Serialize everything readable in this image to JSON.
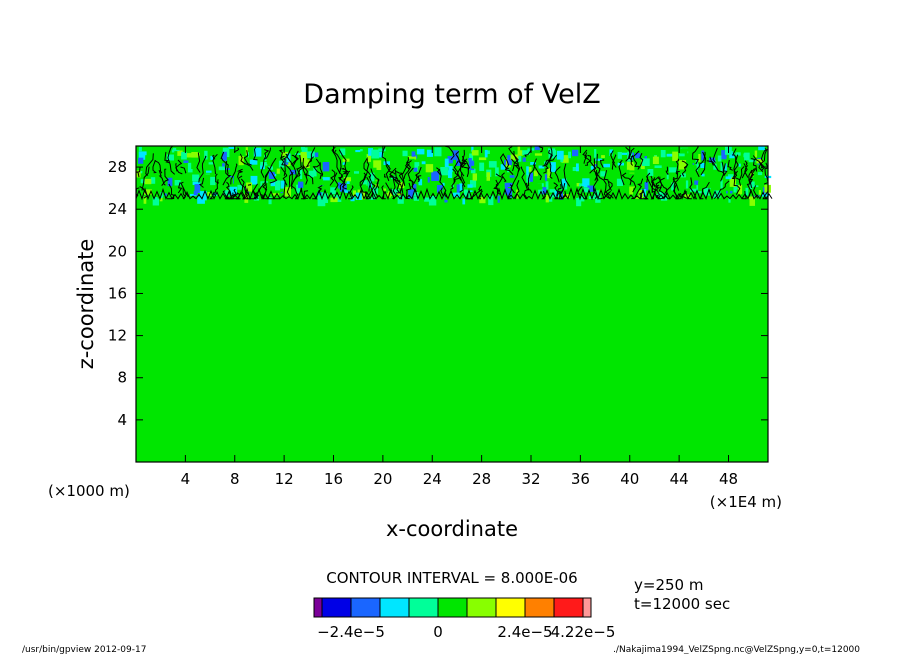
{
  "chart_data": {
    "type": "heatmap",
    "title": "Damping term of VelZ",
    "xlabel": "x-coordinate",
    "ylabel": "z-coordinate",
    "x_unit_left": "(×1000 m)",
    "x_unit_right": "(×1E4 m)",
    "xlim": [
      0,
      51.2
    ],
    "ylim": [
      0,
      30
    ],
    "xticks": [
      "4",
      "8",
      "12",
      "16",
      "20",
      "24",
      "28",
      "32",
      "36",
      "40",
      "44",
      "48"
    ],
    "xtick_values": [
      4,
      8,
      12,
      16,
      20,
      24,
      28,
      32,
      36,
      40,
      44,
      48
    ],
    "yticks": [
      "4",
      "8",
      "12",
      "16",
      "20",
      "24",
      "28"
    ],
    "ytick_values": [
      4,
      8,
      12,
      16,
      20,
      24,
      28
    ],
    "damping_layer_bottom": 25,
    "background_value": 0,
    "contour_interval_text": "CONTOUR INTERVAL = 8.000E-06",
    "colorbar": {
      "levels": [
        -3.2e-05,
        -2.4e-05,
        -1.6e-05,
        -8e-06,
        0,
        8e-06,
        1.6e-05,
        2.4e-05,
        3.2e-05,
        4e-05,
        4.22e-05
      ],
      "colors": [
        "#7b0099",
        "#0000e6",
        "#1a66ff",
        "#00e6ff",
        "#00ff99",
        "#00e600",
        "#88ff00",
        "#ffff00",
        "#ff8000",
        "#ff1a1a",
        "#ff9999"
      ],
      "tick_labels": [
        "−2.4e−5",
        "0",
        "2.4e−5",
        "4.22e−5"
      ]
    },
    "info": [
      "y=250 m",
      "t=12000 sec"
    ],
    "footer_left": "/usr/bin/gpview   2012-09-17",
    "footer_right": "./Nakajima1994_VelZSpng.nc@VelZSpng,y=0,t=12000"
  }
}
